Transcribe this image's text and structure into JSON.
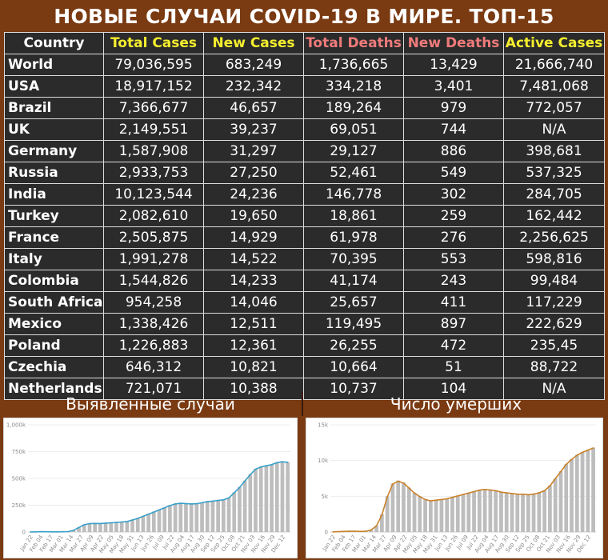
{
  "title": "НОВЫЕ СЛУЧАИ COVID-19 В МИРЕ. ТОП-15",
  "table": {
    "headers": [
      "Country",
      "Total Cases",
      "New Cases",
      "Total Deaths",
      "New Deaths",
      "Active Cases"
    ],
    "header_colors": [
      "#ffffff",
      "#f5ee2e",
      "#f5ee2e",
      "#ef7b7b",
      "#ef7b7b",
      "#f5ee2e"
    ],
    "rows": [
      [
        "World",
        "79,036,595",
        "683,249",
        "1,736,665",
        "13,429",
        "21,666,740"
      ],
      [
        "USA",
        "18,917,152",
        "232,342",
        "334,218",
        "3,401",
        "7,481,068"
      ],
      [
        "Brazil",
        "7,366,677",
        "46,657",
        "189,264",
        "979",
        "772,057"
      ],
      [
        "UK",
        "2,149,551",
        "39,237",
        "69,051",
        "744",
        "N/A"
      ],
      [
        "Germany",
        "1,587,908",
        "31,297",
        "29,127",
        "886",
        "398,681"
      ],
      [
        "Russia",
        "2,933,753",
        "27,250",
        "52,461",
        "549",
        "537,325"
      ],
      [
        "India",
        "10,123,544",
        "24,236",
        "146,778",
        "302",
        "284,705"
      ],
      [
        "Turkey",
        "2,082,610",
        "19,650",
        "18,861",
        "259",
        "162,442"
      ],
      [
        "France",
        "2,505,875",
        "14,929",
        "61,978",
        "276",
        "2,256,625"
      ],
      [
        "Italy",
        "1,991,278",
        "14,522",
        "70,395",
        "553",
        "598,816"
      ],
      [
        "Colombia",
        "1,544,826",
        "14,233",
        "41,174",
        "243",
        "99,484"
      ],
      [
        "South Africa",
        "954,258",
        "14,046",
        "25,657",
        "411",
        "117,229"
      ],
      [
        "Mexico",
        "1,338,426",
        "12,511",
        "119,495",
        "897",
        "222,629"
      ],
      [
        "Poland",
        "1,226,883",
        "12,361",
        "26,255",
        "472",
        "235,45"
      ],
      [
        "Czechia",
        "646,312",
        "10,821",
        "10,664",
        "51",
        "88,722"
      ],
      [
        "Netherlands",
        "721,071",
        "10,388",
        "10,737",
        "104",
        "N/A"
      ]
    ]
  },
  "panels": {
    "cases_title": "Выявленные случаи",
    "deaths_title": "Число умерших"
  },
  "chart_data": [
    {
      "type": "bar",
      "title": "Выявленные случаи",
      "bar_color": "#bdbdbd",
      "line_color": "#3aa0c8",
      "ylim": [
        0,
        1000000
      ],
      "y_ticks": [
        "0",
        "250k",
        "500k",
        "750k",
        "1,000k"
      ],
      "x_ticks": [
        "Jan 22",
        "Feb 04",
        "Feb 17",
        "Mar 01",
        "Mar 14",
        "Mar 27",
        "Apr 09",
        "Apr 22",
        "May 05",
        "May 18",
        "May 31",
        "Jun 13",
        "Jun 26",
        "Jul 09",
        "Jul 22",
        "Aug 04",
        "Aug 17",
        "Aug 30",
        "Sep 12",
        "Sep 25",
        "Oct 08",
        "Oct 21",
        "Nov 03",
        "Nov 16",
        "Nov 29",
        "Dec 12"
      ],
      "x": [
        "Jan 22",
        "Jan 29",
        "Feb 05",
        "Feb 12",
        "Feb 19",
        "Feb 26",
        "Mar 04",
        "Mar 11",
        "Mar 18",
        "Mar 25",
        "Apr 01",
        "Apr 08",
        "Apr 15",
        "Apr 22",
        "Apr 29",
        "May 06",
        "May 13",
        "May 20",
        "May 27",
        "Jun 03",
        "Jun 10",
        "Jun 17",
        "Jun 24",
        "Jul 01",
        "Jul 08",
        "Jul 15",
        "Jul 22",
        "Jul 29",
        "Aug 05",
        "Aug 12",
        "Aug 19",
        "Aug 26",
        "Sep 02",
        "Sep 09",
        "Sep 16",
        "Sep 23",
        "Sep 30",
        "Oct 07",
        "Oct 14",
        "Oct 21",
        "Oct 28",
        "Nov 04",
        "Nov 11",
        "Nov 18",
        "Nov 25",
        "Dec 02",
        "Dec 09",
        "Dec 16",
        "Dec 23"
      ],
      "series": [
        {
          "name": "daily",
          "values": [
            600,
            1800,
            3000,
            2500,
            1000,
            1500,
            2500,
            4500,
            18000,
            45000,
            70000,
            80000,
            82000,
            80000,
            85000,
            88000,
            90000,
            95000,
            100000,
            115000,
            130000,
            150000,
            170000,
            190000,
            210000,
            230000,
            250000,
            265000,
            270000,
            265000,
            262000,
            265000,
            275000,
            285000,
            290000,
            295000,
            300000,
            320000,
            370000,
            420000,
            480000,
            540000,
            590000,
            610000,
            620000,
            630000,
            650000,
            660000,
            650000
          ]
        },
        {
          "name": "7-day average",
          "values": [
            500,
            1500,
            2800,
            2300,
            1200,
            1400,
            2300,
            4000,
            16000,
            42000,
            68000,
            78000,
            80000,
            79000,
            83000,
            86000,
            89000,
            93000,
            98000,
            112000,
            127000,
            146000,
            166000,
            186000,
            206000,
            226000,
            246000,
            262000,
            268000,
            265000,
            262000,
            264000,
            273000,
            283000,
            288000,
            294000,
            300000,
            318000,
            365000,
            415000,
            475000,
            535000,
            585000,
            607000,
            618000,
            628000,
            647000,
            655000,
            650000
          ]
        }
      ]
    },
    {
      "type": "bar",
      "title": "Число умерших",
      "bar_color": "#bdbdbd",
      "line_color": "#c9822a",
      "ylim": [
        0,
        15000
      ],
      "y_ticks": [
        "0",
        "5k",
        "10k",
        "15k"
      ],
      "x_ticks": [
        "Jan 22",
        "Feb 04",
        "Feb 17",
        "Mar 01",
        "Mar 14",
        "Mar 27",
        "Apr 09",
        "Apr 22",
        "May 05",
        "May 18",
        "May 31",
        "Jun 13",
        "Jun 26",
        "Jul 09",
        "Jul 22",
        "Aug 04",
        "Aug 17",
        "Aug 30",
        "Sep 12",
        "Sep 25",
        "Oct 08",
        "Oct 21",
        "Nov 03",
        "Nov 16",
        "Nov 29",
        "Dec 12"
      ],
      "x": [
        "Jan 22",
        "Jan 29",
        "Feb 05",
        "Feb 12",
        "Feb 19",
        "Feb 26",
        "Mar 04",
        "Mar 11",
        "Mar 18",
        "Mar 25",
        "Apr 01",
        "Apr 08",
        "Apr 15",
        "Apr 22",
        "Apr 29",
        "May 06",
        "May 13",
        "May 20",
        "May 27",
        "Jun 03",
        "Jun 10",
        "Jun 17",
        "Jun 24",
        "Jul 01",
        "Jul 08",
        "Jul 15",
        "Jul 22",
        "Jul 29",
        "Aug 05",
        "Aug 12",
        "Aug 19",
        "Aug 26",
        "Sep 02",
        "Sep 09",
        "Sep 16",
        "Sep 23",
        "Sep 30",
        "Oct 07",
        "Oct 14",
        "Oct 21",
        "Oct 28",
        "Nov 04",
        "Nov 11",
        "Nov 18",
        "Nov 25",
        "Dec 02",
        "Dec 09",
        "Dec 16",
        "Dec 23"
      ],
      "series": [
        {
          "name": "daily",
          "values": [
            20,
            40,
            80,
            100,
            120,
            70,
            100,
            300,
            900,
            2500,
            5000,
            6800,
            7200,
            6900,
            6200,
            5500,
            5000,
            4600,
            4400,
            4500,
            4600,
            4700,
            4900,
            5100,
            5300,
            5500,
            5700,
            5900,
            6000,
            5900,
            5800,
            5600,
            5500,
            5400,
            5300,
            5300,
            5200,
            5300,
            5500,
            5800,
            6500,
            7500,
            8500,
            9500,
            10200,
            10800,
            11200,
            11500,
            11800
          ]
        },
        {
          "name": "7-day average",
          "values": [
            20,
            40,
            80,
            100,
            110,
            80,
            100,
            280,
            850,
            2400,
            4900,
            6700,
            7100,
            6850,
            6150,
            5450,
            4950,
            4550,
            4350,
            4450,
            4550,
            4650,
            4850,
            5050,
            5250,
            5450,
            5650,
            5850,
            5950,
            5880,
            5780,
            5580,
            5480,
            5380,
            5300,
            5280,
            5220,
            5300,
            5480,
            5780,
            6450,
            7450,
            8450,
            9450,
            10150,
            10750,
            11150,
            11450,
            11750
          ]
        }
      ]
    }
  ]
}
